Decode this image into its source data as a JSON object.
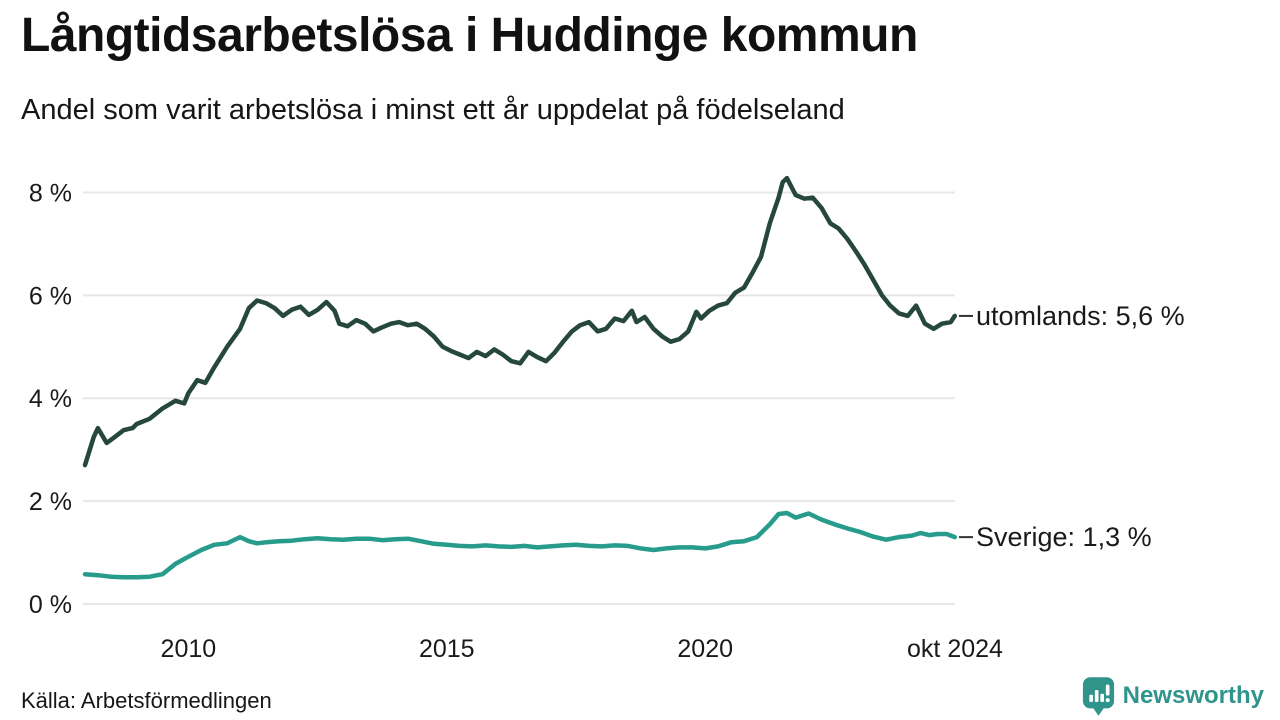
{
  "header": {
    "title": "Långtidsarbetslösa i Huddinge kommun",
    "subtitle": "Andel som varit arbetslösa i minst ett år uppdelat på födelseland"
  },
  "footer": {
    "source": "Källa: Arbetsförmedlingen",
    "brand": "Newsworthy"
  },
  "colors": {
    "background": "#ffffff",
    "text": "#1a1a1a",
    "gridline": "#e7e7e7",
    "series_utomlands": "#26473e",
    "series_sverige": "#279c8c",
    "brand_teal": "#2f948b",
    "connector": "#333333"
  },
  "chart_data": {
    "type": "line",
    "title": "Långtidsarbetslösa i Huddinge kommun",
    "subtitle": "Andel som varit arbetslösa i minst ett år uppdelat på födelseland",
    "grid": true,
    "legend_position": "right-end-labels",
    "x_axis": {
      "range": [
        2008,
        2024.833
      ],
      "ticks": [
        {
          "x": 2010,
          "label": "2010"
        },
        {
          "x": 2015,
          "label": "2015"
        },
        {
          "x": 2020,
          "label": "2020"
        },
        {
          "x": 2024.833,
          "label": "okt 2024"
        }
      ]
    },
    "y_axis": {
      "range": [
        0,
        8.6
      ],
      "unit": "%",
      "ticks": [
        {
          "v": 0,
          "label": "0 %"
        },
        {
          "v": 2,
          "label": "2 %"
        },
        {
          "v": 4,
          "label": "4 %"
        },
        {
          "v": 6,
          "label": "6 %"
        },
        {
          "v": 8,
          "label": "8 %"
        }
      ]
    },
    "series": [
      {
        "name": "utomlands",
        "label": "utomlands: 5,6 %",
        "end_value": "5,6 %",
        "color": "#26473e",
        "points": [
          [
            2008.0,
            2.7
          ],
          [
            2008.17,
            3.25
          ],
          [
            2008.25,
            3.42
          ],
          [
            2008.42,
            3.13
          ],
          [
            2008.58,
            3.25
          ],
          [
            2008.75,
            3.38
          ],
          [
            2008.92,
            3.42
          ],
          [
            2009.0,
            3.5
          ],
          [
            2009.25,
            3.6
          ],
          [
            2009.5,
            3.8
          ],
          [
            2009.75,
            3.95
          ],
          [
            2009.92,
            3.9
          ],
          [
            2010.0,
            4.1
          ],
          [
            2010.17,
            4.35
          ],
          [
            2010.33,
            4.3
          ],
          [
            2010.5,
            4.6
          ],
          [
            2010.75,
            5.0
          ],
          [
            2011.0,
            5.35
          ],
          [
            2011.17,
            5.75
          ],
          [
            2011.33,
            5.9
          ],
          [
            2011.5,
            5.85
          ],
          [
            2011.67,
            5.75
          ],
          [
            2011.83,
            5.6
          ],
          [
            2012.0,
            5.72
          ],
          [
            2012.17,
            5.78
          ],
          [
            2012.33,
            5.62
          ],
          [
            2012.5,
            5.72
          ],
          [
            2012.67,
            5.87
          ],
          [
            2012.83,
            5.7
          ],
          [
            2012.92,
            5.45
          ],
          [
            2013.08,
            5.4
          ],
          [
            2013.25,
            5.52
          ],
          [
            2013.42,
            5.45
          ],
          [
            2013.58,
            5.3
          ],
          [
            2013.75,
            5.38
          ],
          [
            2013.92,
            5.45
          ],
          [
            2014.08,
            5.48
          ],
          [
            2014.25,
            5.42
          ],
          [
            2014.42,
            5.45
          ],
          [
            2014.58,
            5.35
          ],
          [
            2014.75,
            5.2
          ],
          [
            2014.92,
            5.0
          ],
          [
            2015.08,
            4.92
          ],
          [
            2015.25,
            4.85
          ],
          [
            2015.42,
            4.78
          ],
          [
            2015.58,
            4.9
          ],
          [
            2015.75,
            4.82
          ],
          [
            2015.92,
            4.95
          ],
          [
            2016.08,
            4.85
          ],
          [
            2016.25,
            4.72
          ],
          [
            2016.42,
            4.68
          ],
          [
            2016.58,
            4.9
          ],
          [
            2016.75,
            4.8
          ],
          [
            2016.92,
            4.72
          ],
          [
            2017.08,
            4.88
          ],
          [
            2017.25,
            5.1
          ],
          [
            2017.42,
            5.3
          ],
          [
            2017.58,
            5.42
          ],
          [
            2017.75,
            5.48
          ],
          [
            2017.92,
            5.3
          ],
          [
            2018.08,
            5.35
          ],
          [
            2018.25,
            5.55
          ],
          [
            2018.42,
            5.5
          ],
          [
            2018.58,
            5.7
          ],
          [
            2018.67,
            5.48
          ],
          [
            2018.83,
            5.58
          ],
          [
            2019.0,
            5.35
          ],
          [
            2019.17,
            5.2
          ],
          [
            2019.33,
            5.1
          ],
          [
            2019.5,
            5.15
          ],
          [
            2019.67,
            5.3
          ],
          [
            2019.83,
            5.68
          ],
          [
            2019.92,
            5.55
          ],
          [
            2020.08,
            5.7
          ],
          [
            2020.25,
            5.8
          ],
          [
            2020.42,
            5.85
          ],
          [
            2020.58,
            6.05
          ],
          [
            2020.75,
            6.15
          ],
          [
            2020.92,
            6.45
          ],
          [
            2021.08,
            6.75
          ],
          [
            2021.25,
            7.4
          ],
          [
            2021.42,
            7.9
          ],
          [
            2021.5,
            8.2
          ],
          [
            2021.58,
            8.28
          ],
          [
            2021.75,
            7.95
          ],
          [
            2021.92,
            7.88
          ],
          [
            2022.08,
            7.9
          ],
          [
            2022.25,
            7.7
          ],
          [
            2022.42,
            7.4
          ],
          [
            2022.58,
            7.3
          ],
          [
            2022.75,
            7.1
          ],
          [
            2022.92,
            6.85
          ],
          [
            2023.08,
            6.6
          ],
          [
            2023.25,
            6.3
          ],
          [
            2023.42,
            6.0
          ],
          [
            2023.58,
            5.8
          ],
          [
            2023.75,
            5.65
          ],
          [
            2023.92,
            5.6
          ],
          [
            2024.08,
            5.8
          ],
          [
            2024.25,
            5.45
          ],
          [
            2024.42,
            5.35
          ],
          [
            2024.58,
            5.45
          ],
          [
            2024.75,
            5.48
          ],
          [
            2024.83,
            5.6
          ]
        ]
      },
      {
        "name": "Sverige",
        "label": "Sverige: 1,3 %",
        "end_value": "1,3 %",
        "color": "#279c8c",
        "points": [
          [
            2008.0,
            0.58
          ],
          [
            2008.25,
            0.56
          ],
          [
            2008.5,
            0.53
          ],
          [
            2008.75,
            0.52
          ],
          [
            2009.0,
            0.52
          ],
          [
            2009.25,
            0.53
          ],
          [
            2009.5,
            0.58
          ],
          [
            2009.75,
            0.78
          ],
          [
            2010.0,
            0.92
          ],
          [
            2010.25,
            1.05
          ],
          [
            2010.5,
            1.15
          ],
          [
            2010.75,
            1.18
          ],
          [
            2011.0,
            1.3
          ],
          [
            2011.17,
            1.22
          ],
          [
            2011.33,
            1.18
          ],
          [
            2011.5,
            1.2
          ],
          [
            2011.75,
            1.22
          ],
          [
            2012.0,
            1.23
          ],
          [
            2012.25,
            1.26
          ],
          [
            2012.5,
            1.28
          ],
          [
            2012.75,
            1.26
          ],
          [
            2013.0,
            1.25
          ],
          [
            2013.25,
            1.27
          ],
          [
            2013.5,
            1.27
          ],
          [
            2013.75,
            1.24
          ],
          [
            2014.0,
            1.26
          ],
          [
            2014.25,
            1.27
          ],
          [
            2014.5,
            1.22
          ],
          [
            2014.75,
            1.17
          ],
          [
            2015.0,
            1.15
          ],
          [
            2015.25,
            1.13
          ],
          [
            2015.5,
            1.12
          ],
          [
            2015.75,
            1.14
          ],
          [
            2016.0,
            1.12
          ],
          [
            2016.25,
            1.11
          ],
          [
            2016.5,
            1.13
          ],
          [
            2016.75,
            1.1
          ],
          [
            2017.0,
            1.12
          ],
          [
            2017.25,
            1.14
          ],
          [
            2017.5,
            1.15
          ],
          [
            2017.75,
            1.13
          ],
          [
            2018.0,
            1.12
          ],
          [
            2018.25,
            1.14
          ],
          [
            2018.5,
            1.13
          ],
          [
            2018.75,
            1.08
          ],
          [
            2019.0,
            1.05
          ],
          [
            2019.25,
            1.08
          ],
          [
            2019.5,
            1.1
          ],
          [
            2019.75,
            1.1
          ],
          [
            2020.0,
            1.08
          ],
          [
            2020.25,
            1.12
          ],
          [
            2020.5,
            1.2
          ],
          [
            2020.75,
            1.22
          ],
          [
            2021.0,
            1.3
          ],
          [
            2021.25,
            1.55
          ],
          [
            2021.42,
            1.75
          ],
          [
            2021.58,
            1.77
          ],
          [
            2021.75,
            1.68
          ],
          [
            2022.0,
            1.76
          ],
          [
            2022.25,
            1.64
          ],
          [
            2022.5,
            1.55
          ],
          [
            2022.75,
            1.47
          ],
          [
            2023.0,
            1.4
          ],
          [
            2023.25,
            1.31
          ],
          [
            2023.5,
            1.25
          ],
          [
            2023.75,
            1.3
          ],
          [
            2024.0,
            1.33
          ],
          [
            2024.17,
            1.38
          ],
          [
            2024.33,
            1.34
          ],
          [
            2024.5,
            1.36
          ],
          [
            2024.67,
            1.36
          ],
          [
            2024.83,
            1.3
          ]
        ]
      }
    ]
  }
}
